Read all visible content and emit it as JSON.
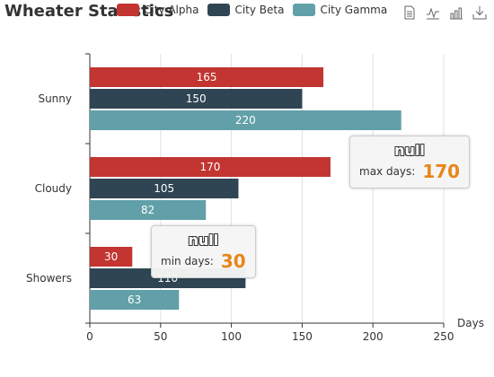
{
  "title": "Wheater Statistics",
  "legend": [
    {
      "label": "City Alpha",
      "color": "#c23531"
    },
    {
      "label": "City Beta",
      "color": "#2f4554"
    },
    {
      "label": "City Gamma",
      "color": "#61a0a8"
    }
  ],
  "toolbox": [
    "data-view-icon",
    "line-chart-icon",
    "bar-chart-icon",
    "save-image-icon"
  ],
  "chart_data": {
    "type": "bar",
    "orientation": "horizontal",
    "categories": [
      "Sunny",
      "Cloudy",
      "Showers"
    ],
    "series": [
      {
        "name": "City Alpha",
        "color": "#c23531",
        "values": [
          165,
          170,
          30
        ]
      },
      {
        "name": "City Beta",
        "color": "#2f4554",
        "values": [
          150,
          105,
          110
        ]
      },
      {
        "name": "City Gamma",
        "color": "#61a0a8",
        "values": [
          220,
          82,
          63
        ]
      }
    ],
    "xlabel": "Days",
    "ylabel": "",
    "xlim": [
      0,
      250
    ],
    "xticks": [
      0,
      50,
      100,
      150,
      200,
      250
    ],
    "grid": true,
    "legend_position": "top"
  },
  "annotations": {
    "max": {
      "title": "null",
      "label": "max days:",
      "value": "170"
    },
    "min": {
      "title": "null",
      "label": "min days:",
      "value": "30"
    }
  }
}
